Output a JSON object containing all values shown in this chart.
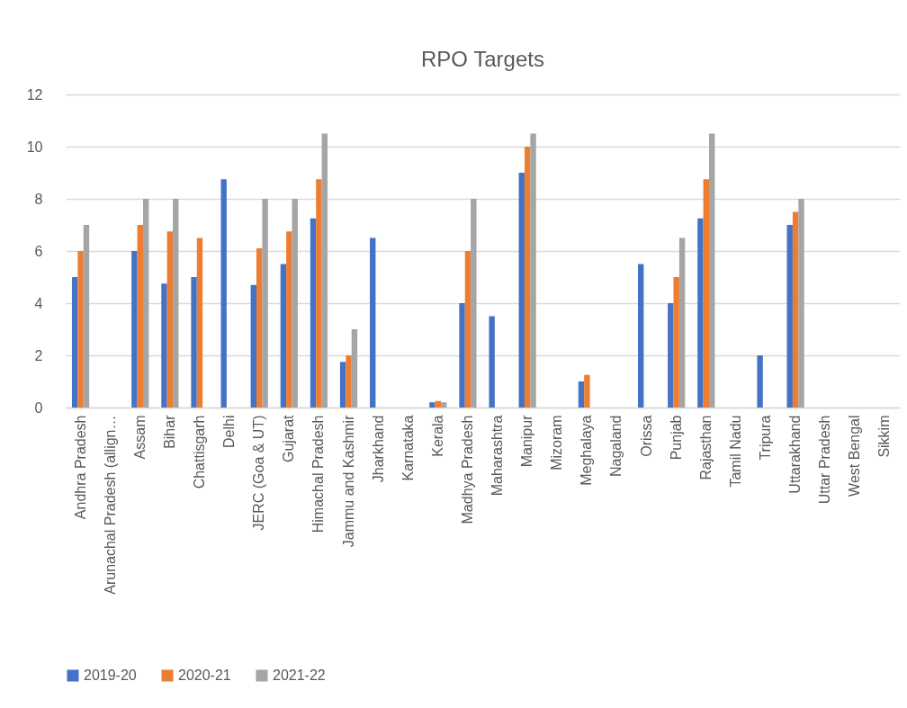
{
  "chart_data": {
    "type": "bar",
    "title": "RPO Targets",
    "categories": [
      "Andhra Pradesh",
      "Arunachal Pradesh (allign…",
      "Assam",
      "Bihar",
      "Chattisgarh",
      "Delhi",
      "JERC (Goa & UT)",
      "Gujarat",
      "Himachal Pradesh",
      "Jammu and Kashmir",
      "Jharkhand",
      "Karnataka",
      "Kerala",
      "Madhya Pradesh",
      "Maharashtra",
      "Manipur",
      "Mizoram",
      "Meghalaya",
      "Nagaland",
      "Orissa",
      "Punjab",
      "Rajasthan",
      "Tamil Nadu",
      "Tripura",
      "Uttarakhand",
      "Uttar Pradesh",
      "West Bengal",
      "Sikkim"
    ],
    "series": [
      {
        "name": "2019-20",
        "color": "#4472c4",
        "values": [
          5,
          null,
          6,
          4.75,
          5,
          8.75,
          4.7,
          5.5,
          7.25,
          1.75,
          6.5,
          null,
          0.2,
          4,
          3.5,
          9,
          null,
          1,
          null,
          5.5,
          4,
          7.25,
          null,
          2,
          7,
          null,
          null,
          null
        ]
      },
      {
        "name": "2020-21",
        "color": "#ed7d31",
        "values": [
          6,
          null,
          7,
          6.75,
          6.5,
          null,
          6.1,
          6.75,
          8.75,
          2,
          null,
          null,
          0.25,
          6,
          null,
          10,
          null,
          1.25,
          null,
          null,
          5,
          8.75,
          null,
          null,
          7.5,
          null,
          null,
          null
        ]
      },
      {
        "name": "2021-22",
        "color": "#a5a5a5",
        "values": [
          7,
          null,
          8,
          8,
          null,
          null,
          8,
          8,
          10.5,
          3,
          null,
          null,
          0.2,
          8,
          null,
          10.5,
          null,
          null,
          null,
          null,
          6.5,
          10.5,
          null,
          null,
          8,
          null,
          null,
          null
        ]
      }
    ],
    "ylim": [
      0,
      12
    ],
    "yticks": [
      0,
      2,
      4,
      6,
      8,
      10,
      12
    ],
    "grid": "y",
    "legend": "bottom"
  }
}
